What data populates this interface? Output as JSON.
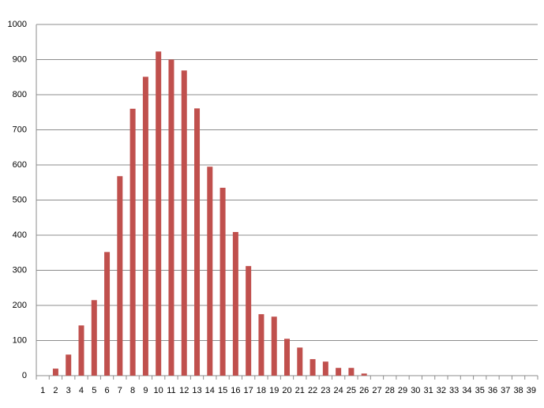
{
  "chart_data": {
    "type": "bar",
    "categories": [
      "1",
      "2",
      "3",
      "4",
      "5",
      "6",
      "7",
      "8",
      "9",
      "10",
      "11",
      "12",
      "13",
      "14",
      "15",
      "16",
      "17",
      "18",
      "19",
      "20",
      "21",
      "22",
      "23",
      "24",
      "25",
      "26",
      "27",
      "28",
      "29",
      "30",
      "31",
      "32",
      "33",
      "34",
      "35",
      "36",
      "37",
      "38",
      "39"
    ],
    "values": [
      0,
      20,
      60,
      143,
      215,
      352,
      568,
      760,
      851,
      923,
      900,
      869,
      761,
      595,
      535,
      409,
      312,
      175,
      168,
      105,
      80,
      47,
      40,
      22,
      22,
      6,
      0,
      0,
      0,
      0,
      0,
      0,
      0,
      0,
      0,
      0,
      0,
      0,
      0
    ],
    "color": "#c0504d",
    "ylim": [
      0,
      1000
    ],
    "yticks": [
      0,
      100,
      200,
      300,
      400,
      500,
      600,
      700,
      800,
      900,
      1000
    ],
    "grid": true
  }
}
